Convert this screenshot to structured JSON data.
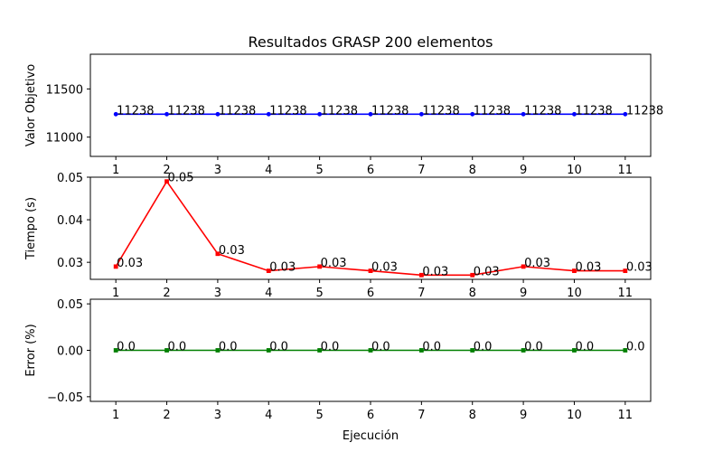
{
  "chart_data": {
    "type": "line",
    "title": "Resultados GRASP 200 elementos",
    "xlabel": "Ejecución",
    "x": [
      1,
      2,
      3,
      4,
      5,
      6,
      7,
      8,
      9,
      10,
      11
    ],
    "panels": [
      {
        "ylabel": "Valor Objetivo",
        "color": "#0000ff",
        "marker": "circle",
        "values": [
          11238,
          11238,
          11238,
          11238,
          11238,
          11238,
          11238,
          11238,
          11238,
          11238,
          11238
        ],
        "labels": [
          "11238",
          "11238",
          "11238",
          "11238",
          "11238",
          "11238",
          "11238",
          "11238",
          "11238",
          "11238",
          "11238"
        ],
        "ylim": [
          10800,
          11860
        ],
        "yticks": [
          11000,
          11500
        ],
        "yticklabels": [
          "11000",
          "11500"
        ]
      },
      {
        "ylabel": "Tiempo (s)",
        "color": "#ff0000",
        "marker": "square",
        "values": [
          0.029,
          0.049,
          0.032,
          0.028,
          0.029,
          0.028,
          0.027,
          0.027,
          0.029,
          0.028,
          0.028
        ],
        "labels": [
          "0.03",
          "0.05",
          "0.03",
          "0.03",
          "0.03",
          "0.03",
          "0.03",
          "0.03",
          "0.03",
          "0.03",
          "0.03"
        ],
        "ylim": [
          0.026,
          0.05
        ],
        "yticks": [
          0.03,
          0.04,
          0.05
        ],
        "yticklabels": [
          "0.03",
          "0.04",
          "0.05"
        ]
      },
      {
        "ylabel": "Error (%)",
        "color": "#008000",
        "marker": "square",
        "values": [
          0,
          0,
          0,
          0,
          0,
          0,
          0,
          0,
          0,
          0,
          0
        ],
        "labels": [
          "0.0",
          "0.0",
          "0.0",
          "0.0",
          "0.0",
          "0.0",
          "0.0",
          "0.0",
          "0.0",
          "0.0",
          "0.0"
        ],
        "ylim": [
          -0.055,
          0.055
        ],
        "yticks": [
          -0.05,
          0,
          0.05
        ],
        "yticklabels": [
          "−0.05",
          "0.00",
          "0.05"
        ]
      }
    ],
    "grid": false,
    "legend": "none"
  }
}
